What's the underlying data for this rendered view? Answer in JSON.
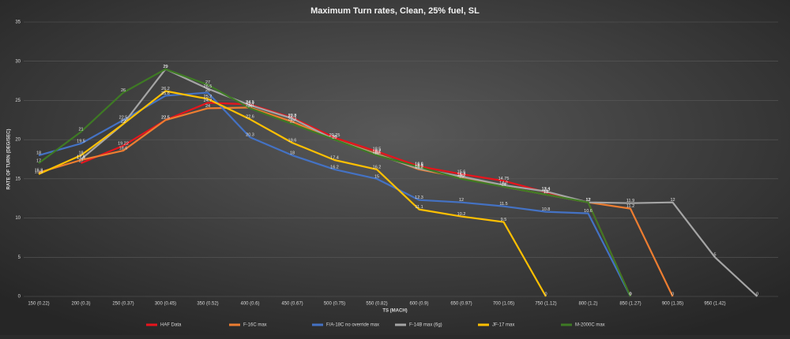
{
  "chart_data": {
    "type": "line",
    "title": "Maximum Turn rates, Clean, 25% fuel, SL",
    "x_label": "TS (MACH)",
    "y_label": "RATE OF TURN (DEG/SEC)",
    "categories": [
      "150 (0.22)",
      "200 (0.3)",
      "250 (0.37)",
      "300 (0.45)",
      "350 (0.52)",
      "400 (0.6)",
      "450 (0.67)",
      "500 (0.75)",
      "550 (0.82)",
      "600 (0.9)",
      "650 (0.97)",
      "700 (1.05)",
      "750 (1.12)",
      "800 (1.2)",
      "850 (1.27)",
      "900 (1.35)",
      "950 (1.42)",
      null
    ],
    "ylim": [
      0,
      35
    ],
    "yticks": [
      0,
      5,
      10,
      15,
      20,
      25,
      30,
      35
    ],
    "grid": true,
    "legend": "bottom",
    "series": [
      {
        "name": "HAF Data",
        "color": "#e8141c",
        "values": [
          null,
          17,
          19.22,
          22.5,
          24.7,
          24.5,
          22.8,
          20.25,
          18.5,
          16.6,
          15.6,
          14.75,
          13.3,
          12,
          0,
          null,
          null,
          null
        ]
      },
      {
        "name": "F-16C max",
        "color": "#ed7d31",
        "values": [
          15.8,
          17.4,
          18.6,
          22.5,
          24,
          24.1,
          22.3,
          20,
          18.2,
          16.2,
          15.2,
          14,
          13,
          12,
          11.2,
          0,
          null,
          null
        ]
      },
      {
        "name": "F/A-18C no override max",
        "color": "#4472c4",
        "values": [
          18,
          19.5,
          22.5,
          25.6,
          26,
          20.3,
          18,
          16.2,
          15,
          12.3,
          12,
          11.5,
          10.8,
          10.6,
          0,
          null,
          null,
          null
        ]
      },
      {
        "name": "F-14B max (6g)",
        "color": "#a5a5a5",
        "values": [
          null,
          17.5,
          22,
          29,
          26.5,
          24.4,
          22.7,
          20,
          18.1,
          16.3,
          15.3,
          14.2,
          13.4,
          12,
          11.9,
          12,
          5,
          0
        ]
      },
      {
        "name": "JF-17 max",
        "color": "#ffc000",
        "values": [
          15.6,
          18,
          22,
          26.2,
          25.2,
          22.6,
          19.6,
          17.4,
          16.2,
          11.1,
          10.2,
          9.5,
          0,
          null,
          null,
          null,
          null,
          null
        ]
      },
      {
        "name": "M-2000C max",
        "color": "#3e7a24",
        "values": [
          17,
          21,
          26,
          29,
          27,
          24,
          22,
          20,
          18,
          16.5,
          15,
          14,
          13,
          12,
          0,
          null,
          null,
          null
        ]
      }
    ]
  }
}
